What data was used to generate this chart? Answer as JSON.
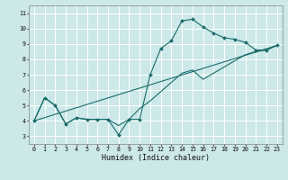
{
  "title": "",
  "xlabel": "Humidex (Indice chaleur)",
  "xlim": [
    -0.5,
    23.5
  ],
  "ylim": [
    2.5,
    11.5
  ],
  "xticks": [
    0,
    1,
    2,
    3,
    4,
    5,
    6,
    7,
    8,
    9,
    10,
    11,
    12,
    13,
    14,
    15,
    16,
    17,
    18,
    19,
    20,
    21,
    22,
    23
  ],
  "yticks": [
    3,
    4,
    5,
    6,
    7,
    8,
    9,
    10,
    11
  ],
  "bg_color": "#cce8e8",
  "line_color": "#1a6b6b",
  "grid_color": "#ffffff",
  "line1_x": [
    0,
    1,
    2,
    3,
    4,
    5,
    6,
    7,
    8,
    9,
    10,
    11,
    12,
    13,
    14,
    15,
    16,
    17,
    18,
    19,
    20,
    21,
    22,
    23
  ],
  "line1_y": [
    4.0,
    5.5,
    5.0,
    3.8,
    4.2,
    4.1,
    4.1,
    4.1,
    3.1,
    4.1,
    4.1,
    7.0,
    8.7,
    9.2,
    10.5,
    10.6,
    10.1,
    9.7,
    9.4,
    9.3,
    9.1,
    8.6,
    8.6,
    8.9
  ],
  "line2_x": [
    0,
    1,
    2,
    3,
    4,
    5,
    6,
    7,
    8,
    9,
    10,
    11,
    12,
    13,
    14,
    15,
    16,
    17,
    18,
    19,
    20,
    21,
    22,
    23
  ],
  "line2_y": [
    4.0,
    5.5,
    5.0,
    3.8,
    4.2,
    4.1,
    4.1,
    4.1,
    3.7,
    4.1,
    4.8,
    5.3,
    5.9,
    6.5,
    7.1,
    7.3,
    6.7,
    7.1,
    7.5,
    7.9,
    8.3,
    8.5,
    8.6,
    8.9
  ],
  "line3_x": [
    0,
    23
  ],
  "line3_y": [
    4.0,
    8.9
  ],
  "xlabel_fontsize": 6.0,
  "tick_fontsize": 4.8
}
